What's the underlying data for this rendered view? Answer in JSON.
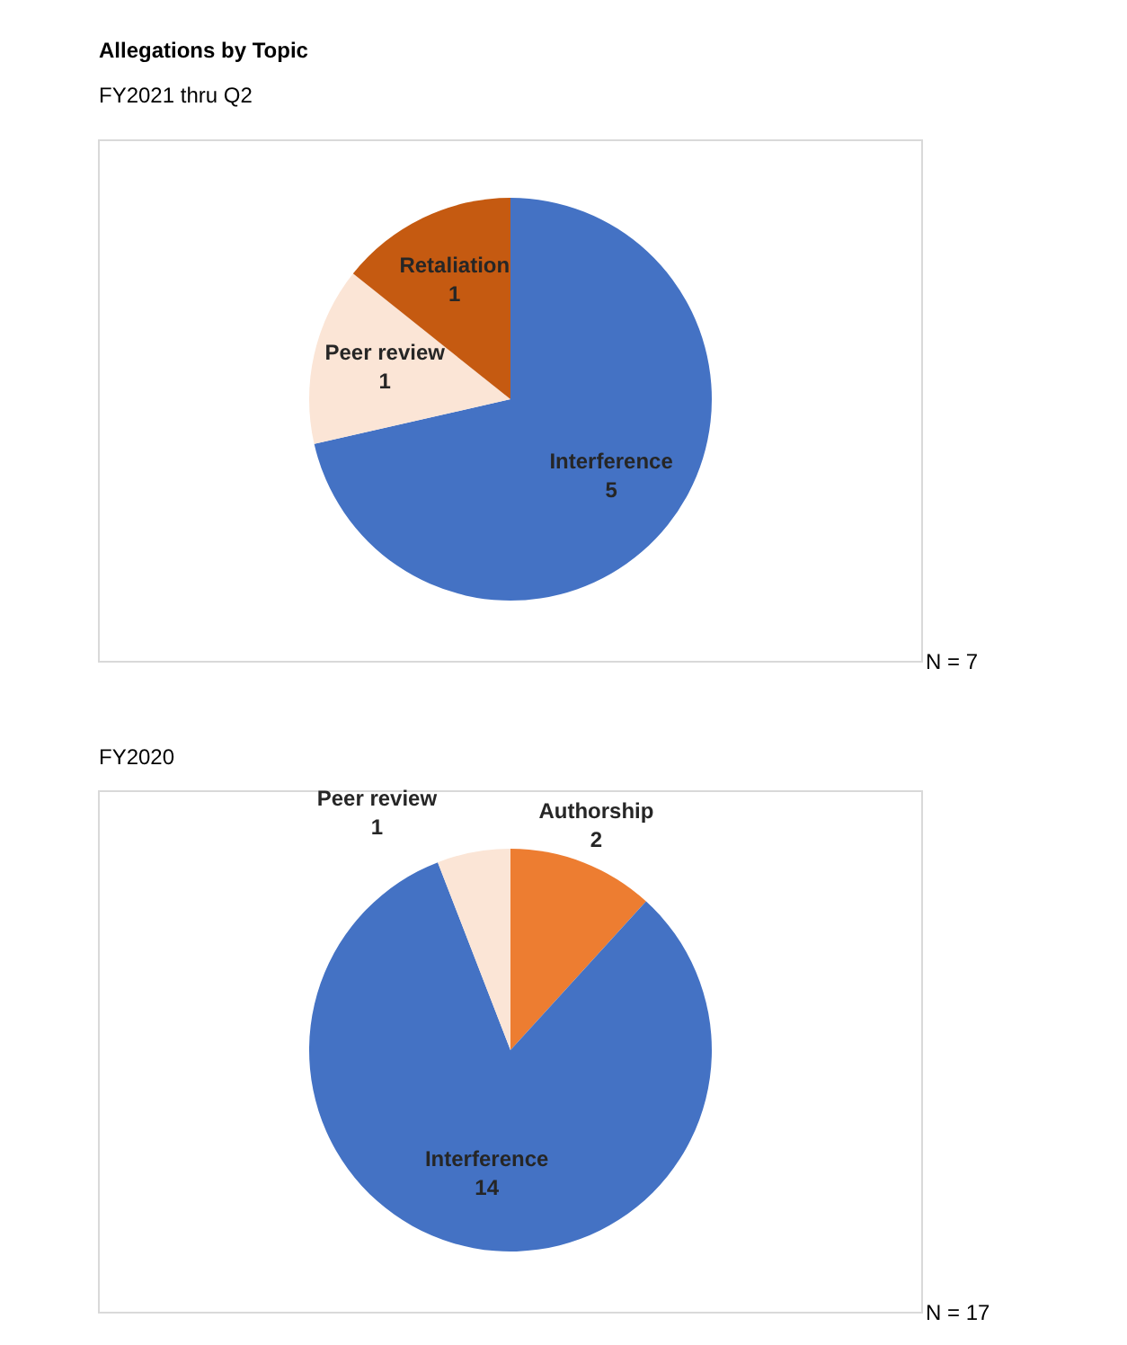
{
  "chart_data": [
    {
      "type": "pie",
      "title": "Allegations by Topic",
      "subtitle": "FY2021 thru Q2",
      "categories": [
        "Interference",
        "Peer review",
        "Retaliation"
      ],
      "values": [
        5,
        1,
        1
      ],
      "colors": [
        "#4472c4",
        "#fbe5d6",
        "#c55a11"
      ],
      "data_labels": true,
      "annotations": [
        "N = 7"
      ]
    },
    {
      "type": "pie",
      "title": "FY2020",
      "categories": [
        "Authorship",
        "Interference",
        "Peer review"
      ],
      "values": [
        2,
        14,
        1
      ],
      "colors": [
        "#ed7d31",
        "#4472c4",
        "#fbe5d6"
      ],
      "data_labels": true,
      "annotations": [
        "N = 17"
      ]
    }
  ]
}
